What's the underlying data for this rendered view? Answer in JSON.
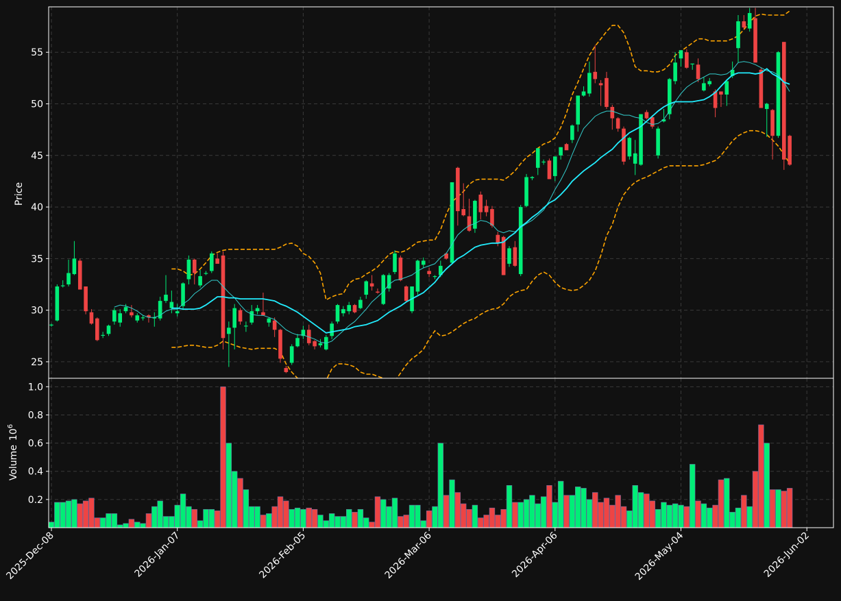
{
  "chart_data": {
    "type": "candlestick",
    "theme": {
      "background": "#111111",
      "frame": "#ffffff",
      "grid": "#3a3a3a",
      "text": "#ffffff"
    },
    "colors": {
      "up": "#00ee77",
      "down": "#ee4444",
      "ma_fast": "#33cccc",
      "ma_slow": "#22eeff",
      "band": "#ffa500"
    },
    "grid": true,
    "price_panel": {
      "ylabel": "Price",
      "ylim": [
        23.4,
        59.4
      ],
      "yticks": [
        25,
        30,
        35,
        40,
        45,
        50,
        55
      ]
    },
    "volume_panel": {
      "ylabel": "Volume",
      "ylabel_exponent": "10",
      "ylabel_exponent_power": "6",
      "ylim": [
        0.0,
        1.06
      ],
      "yticks": [
        0.2,
        0.4,
        0.6,
        0.8,
        1.0
      ],
      "ytick_labels": [
        "0.2",
        "0.4",
        "0.6",
        "0.8",
        "1.0"
      ]
    },
    "x_tick_labels": [
      "2025-Dec-08",
      "2026-Jan-07",
      "2026-Feb-05",
      "2026-Mar-06",
      "2026-Apr-06",
      "2026-May-04",
      "2026-Jun-02"
    ],
    "x_tick_index": [
      0,
      22,
      44,
      66,
      88,
      110,
      132
    ],
    "candles": [
      [
        28.6,
        28.7,
        28.4,
        28.6,
        0.04
      ],
      [
        29.0,
        32.5,
        28.9,
        32.3,
        0.18
      ],
      [
        32.4,
        32.9,
        32.2,
        32.4,
        0.18
      ],
      [
        32.5,
        34.9,
        32.3,
        33.6,
        0.19
      ],
      [
        33.5,
        36.7,
        33.4,
        35.0,
        0.2
      ],
      [
        34.8,
        35.0,
        32.0,
        32.0,
        0.17
      ],
      [
        32.3,
        32.3,
        29.6,
        29.9,
        0.19
      ],
      [
        29.8,
        30.1,
        28.6,
        28.7,
        0.21
      ],
      [
        29.2,
        29.3,
        27.0,
        27.1,
        0.07
      ],
      [
        27.6,
        27.9,
        27.3,
        27.6,
        0.07
      ],
      [
        27.7,
        28.6,
        27.5,
        28.5,
        0.1
      ],
      [
        28.9,
        30.2,
        28.6,
        30.0,
        0.1
      ],
      [
        28.8,
        30.1,
        28.4,
        29.7,
        0.02
      ],
      [
        29.9,
        30.6,
        29.7,
        30.3,
        0.03
      ],
      [
        29.8,
        30.5,
        29.3,
        29.5,
        0.06
      ],
      [
        29.0,
        29.7,
        28.8,
        29.5,
        0.04
      ],
      [
        29.3,
        29.5,
        29.0,
        29.3,
        0.03
      ],
      [
        29.5,
        29.6,
        28.8,
        29.3,
        0.1
      ],
      [
        29.2,
        29.8,
        28.4,
        29.3,
        0.15
      ],
      [
        29.2,
        31.3,
        29.0,
        30.9,
        0.19
      ],
      [
        30.9,
        33.4,
        30.7,
        31.5,
        0.08
      ],
      [
        30.2,
        31.9,
        29.7,
        30.8,
        0.08
      ],
      [
        29.7,
        30.6,
        29.4,
        29.9,
        0.16
      ],
      [
        30.4,
        32.7,
        30.0,
        32.6,
        0.24
      ],
      [
        33.0,
        35.3,
        32.5,
        34.9,
        0.15
      ],
      [
        34.9,
        35.0,
        32.5,
        33.6,
        0.13
      ],
      [
        32.4,
        33.9,
        32.2,
        33.3,
        0.05
      ],
      [
        33.6,
        33.8,
        33.4,
        33.6,
        0.13
      ],
      [
        33.8,
        35.7,
        33.6,
        35.5,
        0.13
      ],
      [
        35.0,
        35.5,
        34.8,
        34.5,
        0.12
      ],
      [
        35.3,
        35.7,
        26.2,
        27.3,
        1.0
      ],
      [
        27.7,
        28.9,
        24.5,
        28.3,
        0.6
      ],
      [
        28.3,
        30.6,
        26.2,
        30.2,
        0.4
      ],
      [
        30.0,
        30.2,
        28.6,
        28.9,
        0.35
      ],
      [
        28.5,
        28.9,
        27.9,
        28.5,
        0.27
      ],
      [
        28.8,
        30.5,
        28.6,
        29.9,
        0.15
      ],
      [
        29.9,
        30.5,
        29.6,
        30.2,
        0.15
      ],
      [
        29.8,
        31.7,
        29.6,
        29.5,
        0.09
      ],
      [
        28.8,
        29.3,
        28.4,
        29.2,
        0.1
      ],
      [
        29.0,
        29.3,
        27.4,
        28.1,
        0.15
      ],
      [
        28.1,
        28.2,
        24.9,
        25.3,
        0.22
      ],
      [
        24.4,
        24.6,
        23.9,
        24.0,
        0.19
      ],
      [
        24.9,
        26.7,
        24.7,
        26.5,
        0.13
      ],
      [
        26.5,
        27.7,
        26.4,
        27.3,
        0.14
      ],
      [
        27.5,
        28.5,
        27.2,
        28.1,
        0.13
      ],
      [
        28.1,
        28.6,
        26.6,
        26.8,
        0.14
      ],
      [
        27.0,
        27.1,
        26.2,
        26.5,
        0.13
      ],
      [
        26.6,
        27.2,
        26.4,
        26.8,
        0.09
      ],
      [
        26.2,
        27.6,
        26.1,
        27.4,
        0.05
      ],
      [
        27.5,
        28.9,
        27.2,
        28.7,
        0.1
      ],
      [
        28.9,
        30.6,
        28.7,
        30.5,
        0.08
      ],
      [
        29.7,
        30.4,
        29.4,
        30.1,
        0.08
      ],
      [
        29.9,
        30.8,
        29.6,
        30.5,
        0.13
      ],
      [
        30.5,
        30.6,
        29.7,
        29.8,
        0.11
      ],
      [
        30.2,
        31.3,
        30.1,
        31.0,
        0.13
      ],
      [
        31.5,
        32.9,
        31.1,
        32.8,
        0.07
      ],
      [
        32.6,
        33.4,
        31.9,
        32.3,
        0.04
      ],
      [
        31.8,
        32.1,
        31.6,
        31.7,
        0.22
      ],
      [
        30.6,
        33.5,
        30.5,
        33.4,
        0.2
      ],
      [
        32.1,
        33.6,
        31.8,
        33.4,
        0.15
      ],
      [
        33.7,
        35.8,
        33.5,
        35.5,
        0.21
      ],
      [
        35.1,
        35.3,
        32.8,
        32.9,
        0.08
      ],
      [
        32.3,
        32.4,
        30.8,
        30.9,
        0.09
      ],
      [
        29.9,
        32.3,
        29.7,
        32.3,
        0.16
      ],
      [
        31.8,
        34.9,
        31.5,
        34.8,
        0.16
      ],
      [
        34.4,
        35.1,
        34.1,
        34.8,
        0.05
      ],
      [
        33.8,
        34.1,
        33.2,
        33.5,
        0.12
      ],
      [
        33.3,
        33.4,
        33.0,
        33.3,
        0.15
      ],
      [
        33.4,
        34.8,
        33.2,
        34.3,
        0.6
      ],
      [
        35.5,
        35.6,
        34.9,
        35.0,
        0.23
      ],
      [
        34.6,
        42.4,
        34.5,
        42.4,
        0.34
      ],
      [
        43.8,
        43.9,
        38.2,
        39.6,
        0.25
      ],
      [
        39.8,
        42.3,
        39.1,
        39.2,
        0.17
      ],
      [
        39.1,
        40.8,
        37.6,
        37.7,
        0.13
      ],
      [
        37.9,
        40.7,
        37.5,
        40.6,
        0.16
      ],
      [
        41.2,
        41.5,
        38.8,
        39.5,
        0.07
      ],
      [
        40.1,
        40.7,
        39.1,
        39.5,
        0.09
      ],
      [
        39.8,
        40.1,
        38.0,
        38.2,
        0.14
      ],
      [
        37.3,
        37.6,
        36.2,
        36.5,
        0.09
      ],
      [
        37.1,
        37.2,
        33.4,
        33.4,
        0.13
      ],
      [
        34.5,
        36.2,
        34.2,
        36.0,
        0.3
      ],
      [
        36.1,
        36.7,
        34.2,
        34.3,
        0.18
      ],
      [
        33.5,
        40.2,
        33.3,
        40.0,
        0.18
      ],
      [
        40.1,
        43.2,
        40.0,
        42.9,
        0.2
      ],
      [
        42.8,
        43.0,
        42.6,
        42.9,
        0.23
      ],
      [
        43.8,
        45.7,
        43.1,
        45.7,
        0.17
      ],
      [
        44.4,
        44.6,
        44.1,
        44.4,
        0.22
      ],
      [
        44.5,
        44.7,
        42.8,
        42.7,
        0.3
      ],
      [
        43.0,
        44.8,
        42.5,
        44.9,
        0.18
      ],
      [
        45.0,
        45.8,
        44.6,
        45.8,
        0.33
      ],
      [
        46.1,
        46.2,
        45.6,
        45.5,
        0.23
      ],
      [
        46.5,
        48.0,
        46.2,
        47.9,
        0.23
      ],
      [
        48.0,
        50.8,
        47.3,
        50.8,
        0.29
      ],
      [
        50.8,
        51.7,
        50.7,
        51.2,
        0.28
      ],
      [
        51.0,
        54.1,
        50.7,
        53.0,
        0.2
      ],
      [
        53.1,
        55.7,
        52.0,
        52.4,
        0.25
      ],
      [
        52.0,
        52.3,
        49.8,
        51.8,
        0.18
      ],
      [
        52.5,
        53.1,
        49.5,
        49.7,
        0.21
      ],
      [
        49.7,
        49.9,
        47.5,
        48.6,
        0.16
      ],
      [
        48.6,
        48.7,
        47.3,
        47.6,
        0.23
      ],
      [
        47.6,
        47.8,
        44.1,
        44.4,
        0.15
      ],
      [
        44.9,
        46.8,
        44.6,
        46.7,
        0.12
      ],
      [
        44.2,
        46.5,
        43.1,
        45.2,
        0.3
      ],
      [
        44.1,
        49.0,
        44.0,
        49.0,
        0.25
      ],
      [
        49.2,
        49.4,
        48.5,
        48.6,
        0.24
      ],
      [
        48.7,
        48.9,
        47.6,
        47.8,
        0.19
      ],
      [
        45.0,
        47.8,
        44.7,
        47.6,
        0.13
      ],
      [
        48.3,
        49.5,
        48.2,
        48.5,
        0.18
      ],
      [
        49.0,
        52.5,
        48.5,
        52.4,
        0.16
      ],
      [
        52.2,
        55.0,
        51.9,
        54.0,
        0.17
      ],
      [
        54.4,
        55.1,
        53.6,
        55.2,
        0.16
      ],
      [
        55.0,
        55.3,
        53.4,
        53.5,
        0.15
      ],
      [
        53.9,
        53.9,
        53.3,
        53.9,
        0.45
      ],
      [
        53.8,
        54.4,
        52.1,
        52.4,
        0.19
      ],
      [
        51.3,
        52.6,
        51.2,
        52.0,
        0.17
      ],
      [
        51.9,
        52.5,
        51.7,
        52.2,
        0.14
      ],
      [
        51.2,
        51.4,
        48.7,
        49.6,
        0.16
      ],
      [
        51.2,
        51.2,
        49.7,
        50.9,
        0.34
      ],
      [
        50.9,
        52.2,
        49.8,
        52.2,
        0.35
      ],
      [
        52.7,
        54.1,
        52.5,
        53.3,
        0.11
      ],
      [
        55.4,
        58.6,
        54.0,
        58.0,
        0.14
      ],
      [
        58.0,
        58.6,
        57.2,
        57.4,
        0.23
      ],
      [
        57.3,
        59.3,
        57.0,
        58.8,
        0.15
      ],
      [
        58.3,
        59.3,
        54.0,
        54.0,
        0.4
      ],
      [
        53.3,
        53.5,
        49.6,
        49.6,
        0.73
      ],
      [
        49.5,
        50.1,
        46.8,
        50.0,
        0.6
      ],
      [
        49.4,
        49.5,
        44.6,
        46.9,
        0.27
      ],
      [
        46.9,
        55.1,
        46.7,
        55.0,
        0.27
      ],
      [
        56.0,
        56.0,
        43.6,
        44.6,
        0.26
      ],
      [
        46.9,
        47.0,
        44.0,
        44.1,
        0.28
      ]
    ],
    "ma_fast": [
      null,
      null,
      null,
      null,
      null,
      null,
      null,
      null,
      null,
      null,
      null,
      30.3,
      30.5,
      30.4,
      30.2,
      29.9,
      29.5,
      29.3,
      29.3,
      29.5,
      29.9,
      30.1,
      30.1,
      30.6,
      31.0,
      31.6,
      32.0,
      32.5,
      32.9,
      32.9,
      32.3,
      31.7,
      31.2,
      30.5,
      29.9,
      29.6,
      29.5,
      29.5,
      29.3,
      29.1,
      28.6,
      28.1,
      27.8,
      27.6,
      27.6,
      27.4,
      27.2,
      26.9,
      26.8,
      27.0,
      27.5,
      28.0,
      28.5,
      28.9,
      29.5,
      30.1,
      30.8,
      31.3,
      31.8,
      32.5,
      32.9,
      33.0,
      33.2,
      33.4,
      33.8,
      34.1,
      34.3,
      34.5,
      35.1,
      35.5,
      36.4,
      37.3,
      37.8,
      38.2,
      38.4,
      38.7,
      38.6,
      38.3,
      37.7,
      37.5,
      37.7,
      37.6,
      38.0,
      38.4,
      38.7,
      39.2,
      39.7,
      40.6,
      41.7,
      42.6,
      43.7,
      45.1,
      46.4,
      47.6,
      48.2,
      48.8,
      49.1,
      49.3,
      49.3,
      49.1,
      48.9,
      48.9,
      48.7,
      48.6,
      48.2,
      48.0,
      48.1,
      48.5,
      49.3,
      50.2,
      51.0,
      51.6,
      52.0,
      52.3,
      52.6,
      52.9,
      52.9,
      52.8,
      52.9,
      53.3,
      54.0,
      54.1,
      54.0,
      53.8,
      53.5,
      53.2,
      53.1,
      52.8,
      52.1,
      51.2
    ],
    "ma_slow": [
      null,
      null,
      null,
      null,
      null,
      null,
      null,
      null,
      null,
      null,
      null,
      null,
      null,
      null,
      null,
      null,
      null,
      null,
      null,
      null,
      null,
      30.2,
      30.2,
      30.1,
      30.1,
      30.1,
      30.2,
      30.5,
      30.9,
      31.3,
      31.3,
      31.2,
      31.2,
      31.1,
      31.1,
      31.1,
      31.1,
      31.1,
      31.0,
      30.9,
      30.6,
      30.4,
      30.1,
      29.8,
      29.4,
      29.0,
      28.6,
      28.2,
      27.8,
      27.9,
      28.0,
      28.1,
      28.2,
      28.4,
      28.5,
      28.6,
      28.8,
      29.0,
      29.4,
      29.8,
      30.1,
      30.4,
      30.8,
      31.1,
      31.4,
      31.7,
      32.2,
      32.7,
      33.4,
      34.0,
      34.5,
      35.0,
      35.3,
      35.7,
      36.1,
      36.3,
      36.4,
      36.5,
      36.5,
      36.6,
      37.1,
      37.5,
      38.1,
      38.5,
      39.0,
      39.4,
      39.9,
      40.4,
      40.7,
      41.2,
      41.8,
      42.5,
      43.0,
      43.5,
      43.9,
      44.3,
      44.8,
      45.2,
      45.6,
      46.2,
      46.7,
      47.2,
      47.5,
      47.8,
      48.3,
      48.8,
      49.3,
      49.7,
      50.0,
      50.2,
      50.2,
      50.2,
      50.2,
      50.3,
      50.4,
      50.7,
      51.1,
      51.7,
      52.3,
      52.8,
      53.0,
      53.0,
      53.0,
      52.9,
      53.0,
      53.4,
      52.9,
      52.6,
      52.1,
      51.9
    ],
    "band_upper": [
      null,
      null,
      null,
      null,
      null,
      null,
      null,
      null,
      null,
      null,
      null,
      null,
      null,
      null,
      null,
      null,
      null,
      null,
      null,
      null,
      null,
      34.0,
      34.0,
      33.8,
      33.4,
      33.5,
      34.0,
      34.6,
      35.3,
      35.6,
      35.8,
      35.9,
      35.9,
      35.9,
      35.9,
      35.9,
      35.9,
      35.9,
      35.9,
      35.9,
      36.1,
      36.4,
      36.5,
      36.2,
      35.5,
      35.2,
      34.6,
      33.6,
      31.0,
      31.3,
      31.5,
      31.6,
      32.6,
      33.0,
      33.1,
      33.5,
      33.8,
      34.2,
      34.8,
      35.4,
      35.7,
      35.6,
      35.8,
      36.2,
      36.6,
      36.7,
      36.8,
      36.8,
      37.8,
      39.3,
      40.5,
      41.0,
      41.5,
      42.2,
      42.6,
      42.7,
      42.7,
      42.7,
      42.7,
      42.6,
      43.0,
      43.5,
      44.2,
      44.8,
      45.2,
      45.7,
      46.1,
      46.3,
      46.7,
      47.7,
      49.1,
      50.9,
      52.1,
      53.4,
      54.7,
      55.6,
      56.3,
      57.0,
      57.6,
      57.6,
      56.9,
      55.5,
      53.6,
      53.2,
      53.2,
      53.1,
      53.1,
      53.3,
      53.8,
      54.7,
      55.1,
      55.5,
      55.9,
      56.3,
      56.3,
      56.1,
      56.1,
      56.1,
      56.1,
      56.3,
      56.6,
      57.2,
      57.9,
      58.5,
      58.7,
      58.6,
      58.6,
      58.6,
      58.6,
      59.0
    ],
    "band_lower": [
      null,
      null,
      null,
      null,
      null,
      null,
      null,
      null,
      null,
      null,
      null,
      null,
      null,
      null,
      null,
      null,
      null,
      null,
      null,
      null,
      null,
      26.4,
      26.4,
      26.5,
      26.6,
      26.6,
      26.5,
      26.4,
      26.4,
      26.6,
      27.0,
      26.8,
      26.6,
      26.4,
      26.3,
      26.2,
      26.3,
      26.3,
      26.3,
      26.3,
      26.0,
      24.8,
      24.0,
      23.4,
      23.3,
      23.0,
      22.8,
      22.8,
      23.2,
      24.3,
      24.8,
      24.8,
      24.7,
      24.5,
      24.0,
      23.8,
      23.8,
      23.6,
      23.4,
      23.0,
      23.1,
      23.9,
      24.7,
      25.3,
      25.7,
      26.2,
      27.2,
      28.0,
      27.5,
      27.6,
      27.9,
      28.3,
      28.7,
      29.0,
      29.2,
      29.6,
      29.9,
      30.1,
      30.2,
      30.6,
      31.3,
      31.7,
      31.9,
      32.0,
      32.8,
      33.4,
      33.7,
      33.4,
      32.7,
      32.2,
      32.0,
      31.9,
      32.0,
      32.4,
      32.9,
      33.8,
      35.3,
      37.2,
      38.3,
      40.0,
      41.2,
      41.9,
      42.4,
      42.7,
      42.9,
      43.2,
      43.5,
      43.8,
      44.0,
      44.0,
      44.0,
      44.0,
      44.0,
      44.0,
      44.1,
      44.3,
      44.5,
      45.0,
      45.7,
      46.4,
      46.9,
      47.2,
      47.4,
      47.4,
      47.3,
      47.0,
      46.5,
      45.9,
      45.1,
      44.2
    ]
  }
}
